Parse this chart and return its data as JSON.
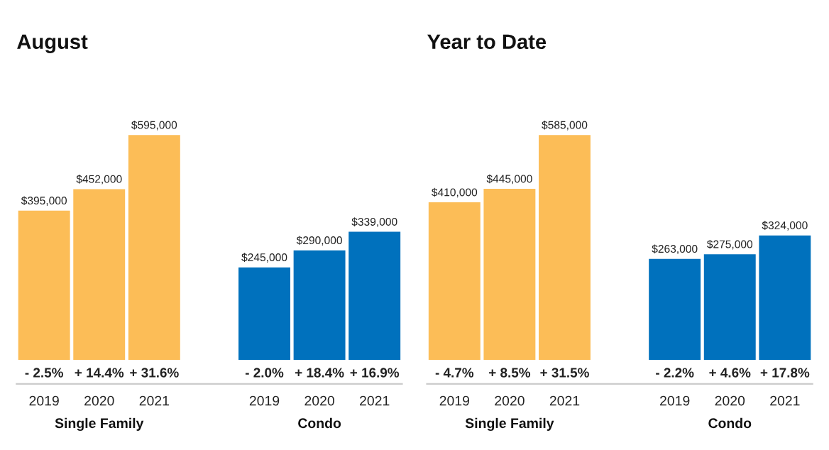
{
  "chart_data": [
    {
      "type": "bar",
      "title": "August",
      "categories": [
        "2019",
        "2020",
        "2021",
        null,
        "2019",
        "2020",
        "2021"
      ],
      "values": [
        395000,
        452000,
        595000,
        null,
        245000,
        290000,
        339000
      ],
      "colors": [
        "#fcbd57",
        "#fcbd57",
        "#fcbd57",
        null,
        "#0071bd",
        "#0071bd",
        "#0071bd"
      ],
      "value_labels": [
        "$395,000",
        "$452,000",
        "$595,000",
        null,
        "$245,000",
        "$290,000",
        "$339,000"
      ],
      "annotations": [
        "- 2.5%",
        "+ 14.4%",
        "+ 31.6%",
        "- 2.0%",
        "+ 18.4%",
        "+ 16.9%",
        "Single Family",
        "Condo"
      ]
    },
    {
      "type": "bar",
      "title": "Year to Date",
      "categories": [
        "2019",
        "2020",
        "2021",
        null,
        "2019",
        "2020",
        "2021"
      ],
      "values": [
        410000,
        445000,
        585000,
        null,
        263000,
        275000,
        324000
      ],
      "colors": [
        "#fcbd57",
        "#fcbd57",
        "#fcbd57",
        null,
        "#0071bd",
        "#0071bd",
        "#0071bd"
      ],
      "value_labels": [
        "$410,000",
        "$445,000",
        "$585,000",
        null,
        "$263,000",
        "$275,000",
        "$324,000"
      ],
      "annotations": [
        "- 4.7%",
        "+ 8.5%",
        "+ 31.5%",
        "- 2.2%",
        "+ 4.6%",
        "+ 17.8%",
        "Single Family",
        "Condo"
      ]
    }
  ]
}
